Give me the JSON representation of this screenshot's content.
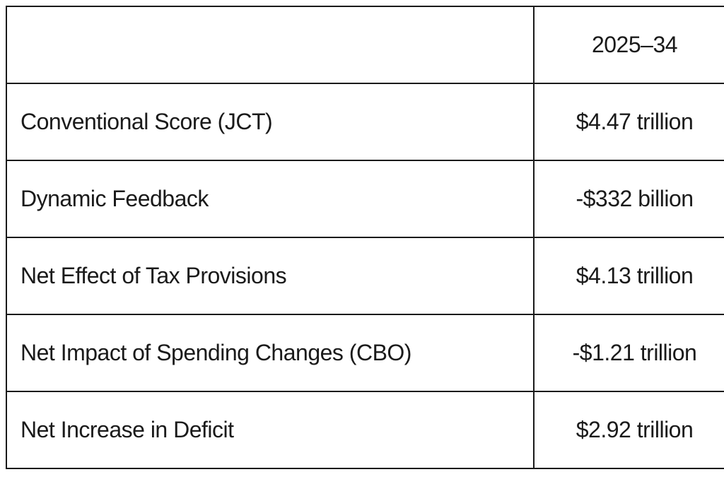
{
  "table": {
    "header": {
      "label": "",
      "period": "2025–34"
    },
    "rows": [
      {
        "label": "Conventional Score (JCT)",
        "value": "$4.47 trillion"
      },
      {
        "label": "Dynamic Feedback",
        "value": "-$332 billion"
      },
      {
        "label": "Net Effect of Tax Provisions",
        "value": "$4.13 trillion"
      },
      {
        "label": "Net Impact of Spending Changes (CBO)",
        "value": "-$1.21 trillion"
      },
      {
        "label": "Net Increase in Deficit",
        "value": "$2.92 trillion"
      }
    ]
  }
}
